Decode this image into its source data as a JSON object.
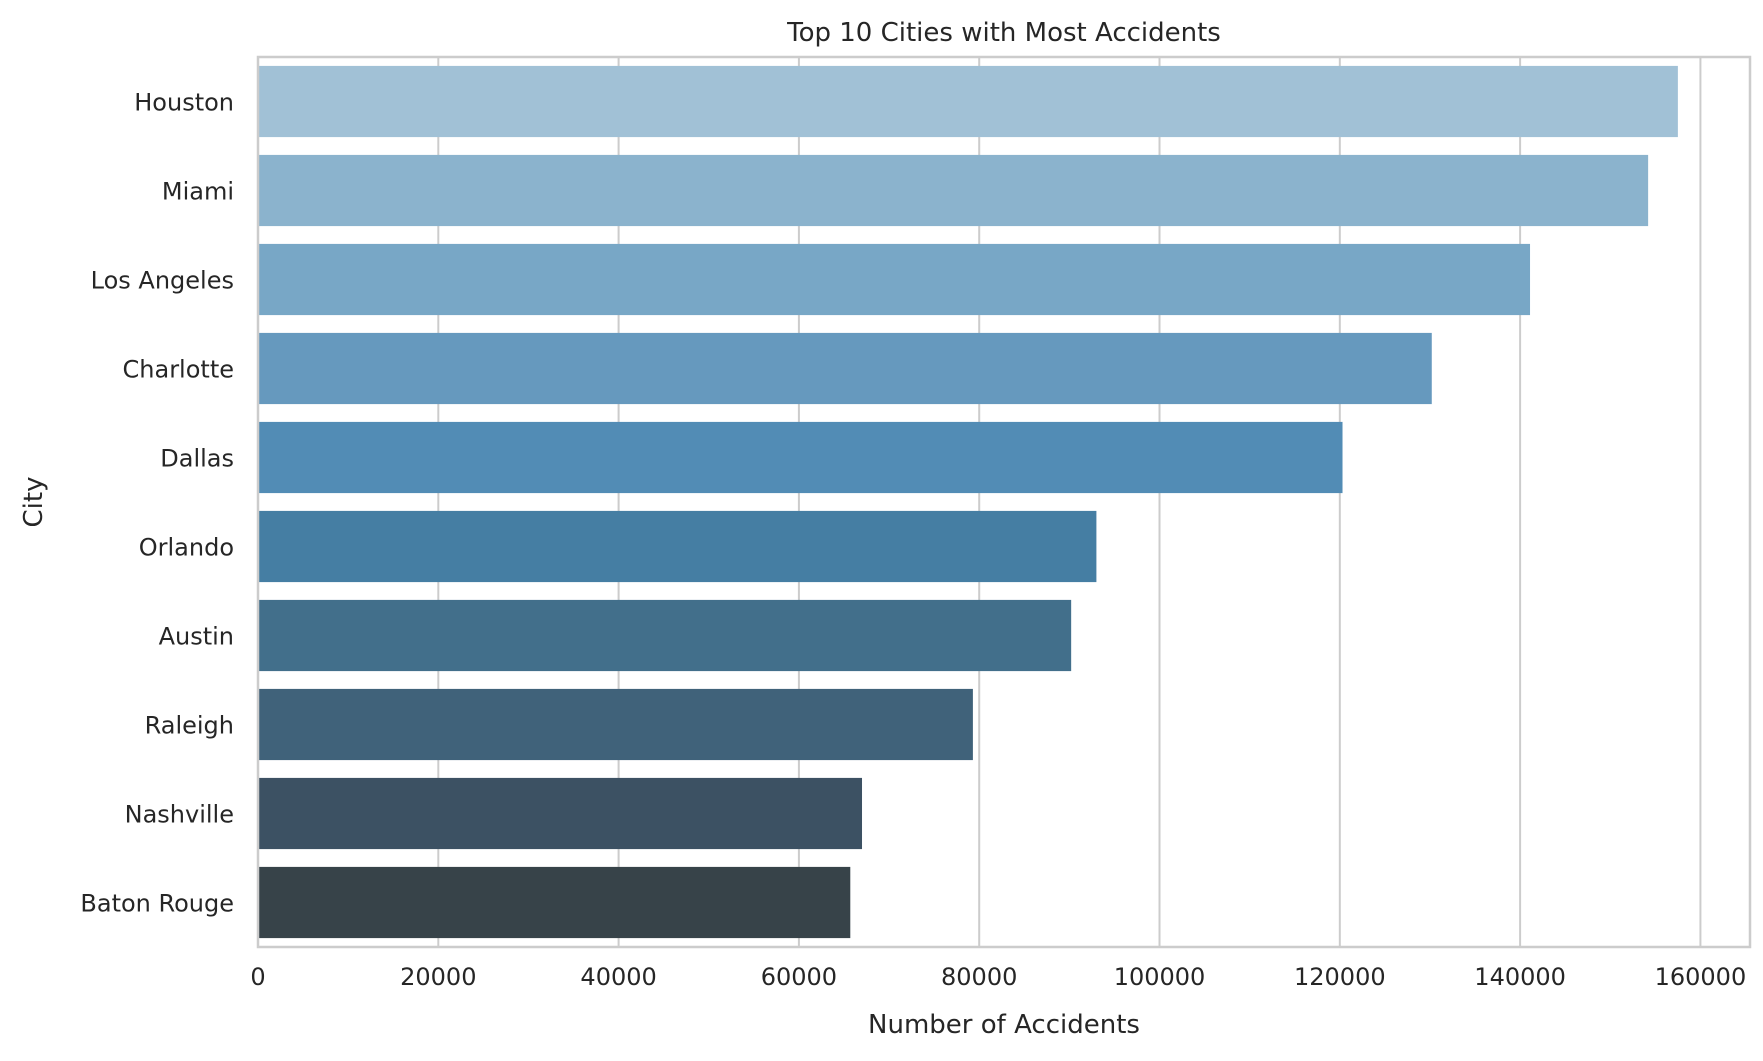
{
  "chart_data": {
    "type": "bar",
    "orientation": "horizontal",
    "title": "Top 10 Cities with Most Accidents",
    "xlabel": "Number of Accidents",
    "ylabel": "City",
    "categories": [
      "Houston",
      "Miami",
      "Los Angeles",
      "Charlotte",
      "Dallas",
      "Orlando",
      "Austin",
      "Raleigh",
      "Nashville",
      "Baton Rouge"
    ],
    "values": [
      157500,
      154200,
      141100,
      130200,
      120300,
      93000,
      90200,
      79300,
      67000,
      65700
    ],
    "colors": [
      "#a1c1d6",
      "#8bb3cd",
      "#78a7c6",
      "#6699be",
      "#528cb5",
      "#457ea3",
      "#426f8b",
      "#40627a",
      "#3c5163",
      "#374349"
    ],
    "xlim": [
      0,
      165500
    ],
    "xticks": [
      0,
      20000,
      40000,
      60000,
      80000,
      100000,
      120000,
      140000,
      160000
    ],
    "grid": true,
    "legend": "none"
  }
}
